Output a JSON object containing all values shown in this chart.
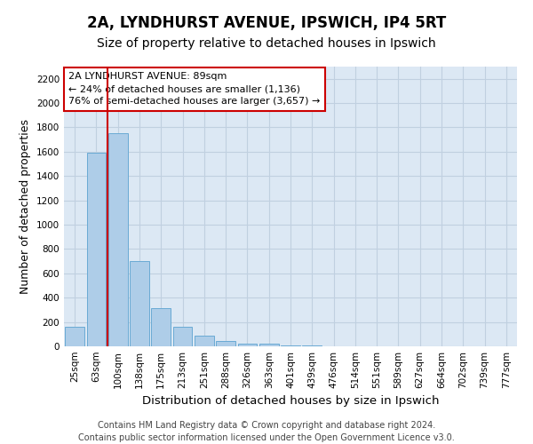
{
  "title": "2A, LYNDHURST AVENUE, IPSWICH, IP4 5RT",
  "subtitle": "Size of property relative to detached houses in Ipswich",
  "xlabel": "Distribution of detached houses by size in Ipswich",
  "ylabel": "Number of detached properties",
  "categories": [
    "25sqm",
    "63sqm",
    "100sqm",
    "138sqm",
    "175sqm",
    "213sqm",
    "251sqm",
    "288sqm",
    "326sqm",
    "363sqm",
    "401sqm",
    "439sqm",
    "476sqm",
    "514sqm",
    "551sqm",
    "589sqm",
    "627sqm",
    "664sqm",
    "702sqm",
    "739sqm",
    "777sqm"
  ],
  "values": [
    163,
    1590,
    1750,
    700,
    315,
    160,
    85,
    45,
    25,
    20,
    10,
    5,
    3,
    0,
    0,
    0,
    0,
    0,
    0,
    0,
    0
  ],
  "bar_color": "#aecde8",
  "bar_edge_color": "#6aaad4",
  "vline_color": "#cc0000",
  "vline_pos": 1.5,
  "annotation_text": "2A LYNDHURST AVENUE: 89sqm\n← 24% of detached houses are smaller (1,136)\n76% of semi-detached houses are larger (3,657) →",
  "annotation_box_color": "#ffffff",
  "annotation_box_edge": "#cc0000",
  "ylim": [
    0,
    2300
  ],
  "yticks": [
    0,
    200,
    400,
    600,
    800,
    1000,
    1200,
    1400,
    1600,
    1800,
    2000,
    2200
  ],
  "grid_color": "#c0d0e0",
  "bg_color": "#dce8f4",
  "footer": "Contains HM Land Registry data © Crown copyright and database right 2024.\nContains public sector information licensed under the Open Government Licence v3.0.",
  "title_fontsize": 12,
  "subtitle_fontsize": 10,
  "xlabel_fontsize": 9.5,
  "ylabel_fontsize": 9,
  "tick_fontsize": 7.5,
  "annotation_fontsize": 8,
  "footer_fontsize": 7
}
